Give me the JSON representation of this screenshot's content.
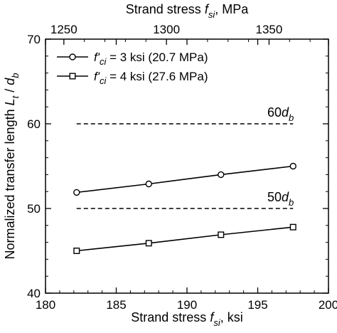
{
  "chart_data": {
    "type": "line",
    "x_axis": {
      "label_prefix": "Strand stress ",
      "label_symbol": "f",
      "label_subscript": "si",
      "label_suffix": ", ksi",
      "range": [
        180,
        200
      ],
      "ticks": [
        180,
        185,
        190,
        195,
        200
      ]
    },
    "x2_axis": {
      "label_prefix": "Strand stress ",
      "label_symbol": "f",
      "label_subscript": "si",
      "label_suffix": ", MPa",
      "range_note": "MPa equivalent of the ksi axis (1 ksi = 6.895 MPa)",
      "ticks": [
        1250,
        1300,
        1350
      ]
    },
    "y_axis": {
      "label_prefix": "Normalized transfer length ",
      "label_math": "Lt / db",
      "range": [
        40,
        70
      ],
      "ticks": [
        40,
        50,
        60,
        70
      ]
    },
    "series": [
      {
        "name_prime": "f'",
        "name_sub": "ci",
        "name_rest": " = 3 ksi (20.7 MPa)",
        "marker": "circle",
        "x": [
          182.2,
          187.3,
          192.4,
          197.5
        ],
        "y": [
          51.9,
          52.9,
          54.0,
          55.0
        ]
      },
      {
        "name_prime": "f'",
        "name_sub": "ci",
        "name_rest": " = 4 ksi (27.6 MPa)",
        "marker": "square",
        "x": [
          182.2,
          187.3,
          192.4,
          197.5
        ],
        "y": [
          45.0,
          45.9,
          46.9,
          47.8
        ]
      }
    ],
    "reference_lines": [
      {
        "y": 60,
        "x_range": [
          182.2,
          197.5
        ],
        "label_num": "60",
        "label_var": "d",
        "label_sub": "b",
        "style": "dashed"
      },
      {
        "y": 50,
        "x_range": [
          182.2,
          197.5
        ],
        "label_num": "50",
        "label_var": "d",
        "label_sub": "b",
        "style": "dashed"
      }
    ],
    "legend_position": "top-left",
    "grid": false
  }
}
